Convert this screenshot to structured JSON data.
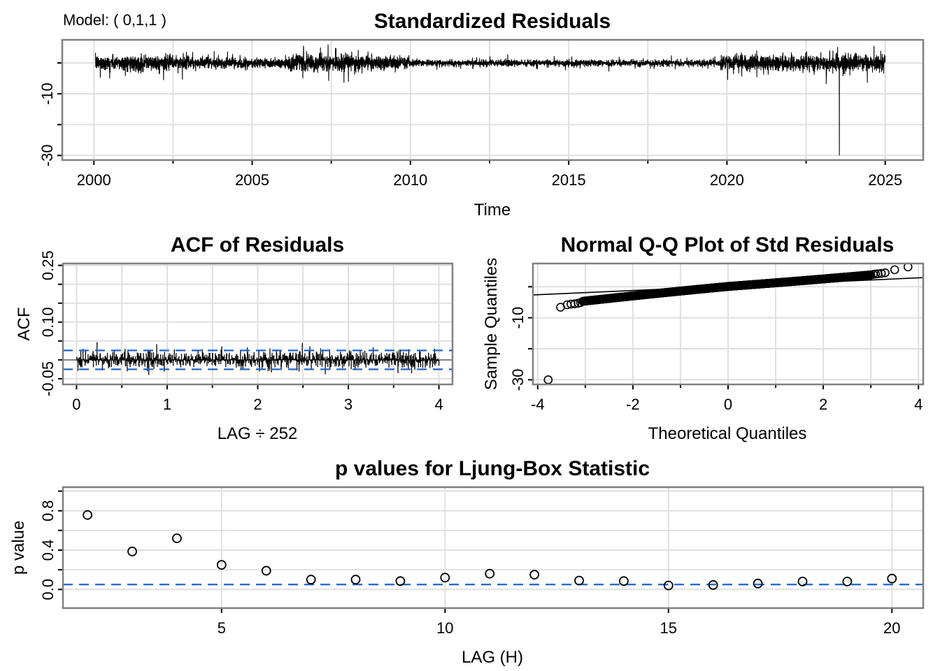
{
  "model_label": "Model: ( 0,1,1 )",
  "chart_data": [
    {
      "id": "std-residuals",
      "type": "line",
      "title": "Standardized Residuals",
      "xlabel": "Time",
      "ylabel": "",
      "xlim": [
        1999,
        2026.2
      ],
      "ylim": [
        -31.5,
        7.5
      ],
      "xticks": [
        2000,
        2005,
        2010,
        2015,
        2020,
        2025
      ],
      "xtick_labels": [
        "2000",
        "2005",
        "2010",
        "2015",
        "2020",
        "2025"
      ],
      "xminor_ticks": [
        2002.5,
        2007.5,
        2012.5,
        2017.5,
        2022.5
      ],
      "yticks": [
        0,
        -10,
        -20,
        -30
      ],
      "ytick_labels": [
        "",
        "-10",
        "",
        "-30"
      ],
      "grid": true,
      "series_summary": {
        "start": 2000.05,
        "end": 2025.0,
        "observations_per_year": 252,
        "volatility_profile": [
          {
            "from": 2000.0,
            "to": 2003.0,
            "scale": 1.25
          },
          {
            "from": 2003.0,
            "to": 2006.0,
            "scale": 0.85
          },
          {
            "from": 2006.0,
            "to": 2008.8,
            "scale": 1.35
          },
          {
            "from": 2008.8,
            "to": 2010.0,
            "scale": 1.1
          },
          {
            "from": 2010.0,
            "to": 2019.8,
            "scale": 0.55
          },
          {
            "from": 2019.8,
            "to": 2023.5,
            "scale": 1.3
          },
          {
            "from": 2023.5,
            "to": 2025.0,
            "scale": 1.4
          }
        ],
        "outliers": [
          {
            "x": 2023.55,
            "y": -30
          },
          {
            "x": 2007.4,
            "y": 6.0
          },
          {
            "x": 2007.9,
            "y": -6.4
          },
          {
            "x": 2002.2,
            "y": -5.6
          },
          {
            "x": 2000.5,
            "y": -5.0
          }
        ]
      }
    },
    {
      "id": "acf-residuals",
      "type": "bar",
      "title": "ACF of Residuals",
      "xlabel": "LAG ÷ 252",
      "ylabel": "ACF",
      "xlim": [
        -0.15,
        4.15
      ],
      "ylim": [
        -0.065,
        0.255
      ],
      "xticks": [
        0,
        1,
        2,
        3,
        4
      ],
      "xtick_labels": [
        "0",
        "1",
        "2",
        "3",
        "4"
      ],
      "xminor_ticks": [
        0.5,
        1.5,
        2.5,
        3.5
      ],
      "yticks": [
        0.25,
        0.2,
        0.15,
        0.1,
        0.05,
        0.0,
        -0.05
      ],
      "ytick_labels": [
        "0.25",
        "",
        "",
        "0.10",
        "",
        "",
        "-0.05"
      ],
      "confidence_bounds": [
        0.025,
        -0.025
      ],
      "max_lag": 1008,
      "lag_scale": 252,
      "grid": true
    },
    {
      "id": "qq-plot",
      "type": "scatter",
      "title": "Normal Q-Q Plot of Std Residuals",
      "xlabel": "Theoretical Quantiles",
      "ylabel": "Sample Quantiles",
      "xlim": [
        -4.1,
        4.1
      ],
      "ylim": [
        -31.5,
        7.5
      ],
      "xticks": [
        -4,
        -2,
        0,
        2,
        4
      ],
      "xtick_labels": [
        "-4",
        "-2",
        "0",
        "2",
        "4"
      ],
      "xminor_ticks": [
        -3,
        -1,
        1,
        3
      ],
      "yticks": [
        0,
        -10,
        -20,
        -30
      ],
      "ytick_labels": [
        "",
        "-10",
        "",
        "-30"
      ],
      "reference_line": {
        "intercept": 0.15,
        "slope": 0.68
      },
      "tail_points": [
        {
          "x": -3.78,
          "y": -30.0
        },
        {
          "x": -3.52,
          "y": -6.6
        },
        {
          "x": -3.38,
          "y": -5.8
        },
        {
          "x": -3.3,
          "y": -5.6
        },
        {
          "x": -3.22,
          "y": -5.5
        },
        {
          "x": -3.15,
          "y": -5.3
        },
        {
          "x": -3.1,
          "y": -5.1
        },
        {
          "x": 3.05,
          "y": 4.0
        },
        {
          "x": 3.1,
          "y": 4.1
        },
        {
          "x": 3.15,
          "y": 4.2
        },
        {
          "x": 3.22,
          "y": 4.3
        },
        {
          "x": 3.3,
          "y": 4.5
        },
        {
          "x": 3.5,
          "y": 5.5
        },
        {
          "x": 3.78,
          "y": 6.4
        }
      ],
      "grid": true
    },
    {
      "id": "ljung-box",
      "type": "scatter",
      "title": "p values for Ljung-Box Statistic",
      "xlabel": "LAG (H)",
      "ylabel": "p value",
      "xlim": [
        1.45,
        20.7
      ],
      "ylim": [
        -0.19,
        1.04
      ],
      "xticks": [
        5,
        10,
        15,
        20
      ],
      "xtick_labels": [
        "5",
        "10",
        "15",
        "20"
      ],
      "yticks": [
        0.0,
        0.2,
        0.4,
        0.6,
        0.8,
        1.0
      ],
      "ytick_labels": [
        "0.0",
        "",
        "0.4",
        "",
        "0.8",
        ""
      ],
      "significance_level": 0.05,
      "x": [
        2,
        3,
        4,
        5,
        6,
        7,
        8,
        9,
        10,
        11,
        12,
        13,
        14,
        15,
        16,
        17,
        18,
        19,
        20
      ],
      "values": [
        0.757,
        0.386,
        0.52,
        0.25,
        0.19,
        0.1,
        0.1,
        0.085,
        0.12,
        0.16,
        0.15,
        0.09,
        0.085,
        0.04,
        0.045,
        0.06,
        0.08,
        0.08,
        0.11
      ],
      "grid": true
    }
  ],
  "colors": {
    "line": "#000000",
    "grid": "#e0e0e0",
    "frame": "#808080",
    "bounds": "#1f63c6"
  }
}
